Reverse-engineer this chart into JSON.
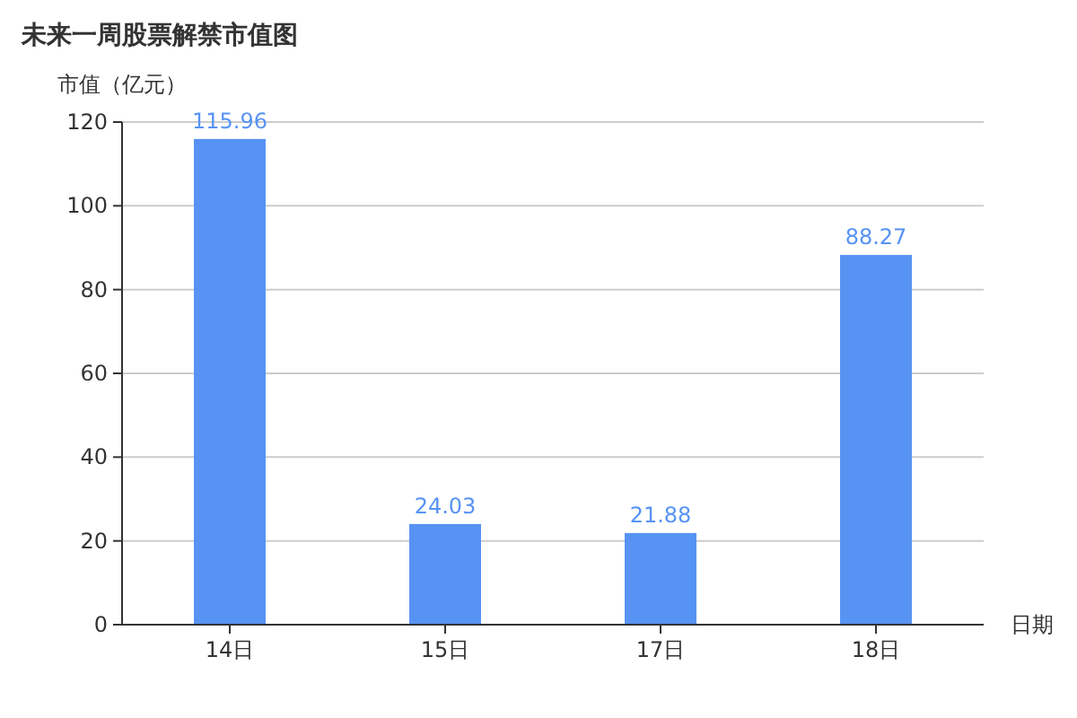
{
  "chart_data": {
    "type": "bar",
    "title": "未来一周股票解禁市值图",
    "ylabel": "市值（亿元）",
    "xlabel": "日期",
    "categories": [
      "14日",
      "15日",
      "17日",
      "18日"
    ],
    "values": [
      115.96,
      24.03,
      21.88,
      88.27
    ],
    "color": "#5793f3",
    "ylim": [
      0,
      120
    ],
    "yticks": [
      0,
      20,
      40,
      60,
      80,
      100,
      120
    ],
    "grid": "y",
    "data_labels": true
  }
}
